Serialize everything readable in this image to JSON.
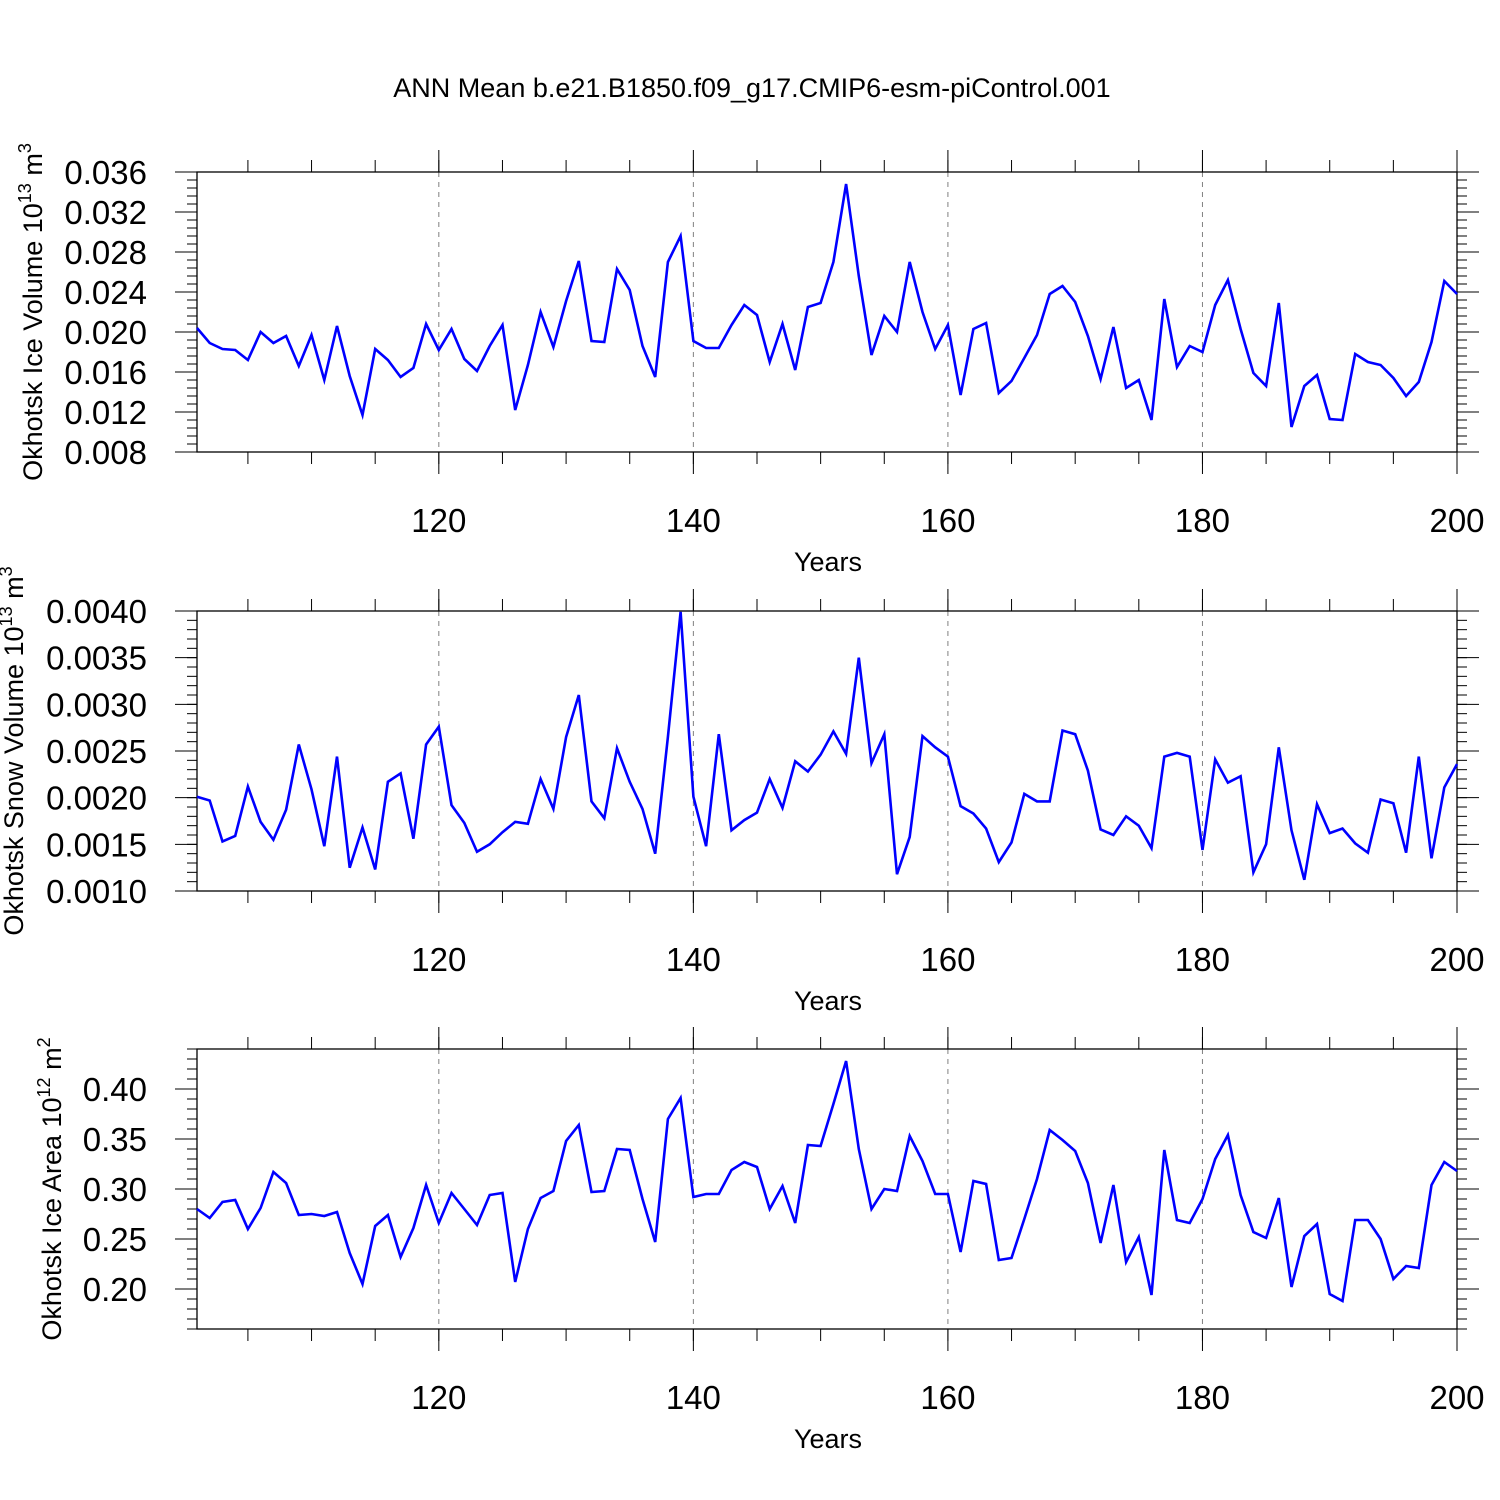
{
  "title": "ANN Mean b.e21.B1850.f09_g17.CMIP6-esm-piControl.001",
  "colors": {
    "line": "#0000ff",
    "grid": "#808080",
    "axis": "#000000"
  },
  "chart_data": [
    {
      "type": "line",
      "ylabel": "Okhotsk Ice Volume 10",
      "ylabel_exp": "13",
      "ylabel_unit": " m",
      "ylabel_unit_exp": "3",
      "xlabel": "Years",
      "xlim": [
        101,
        200
      ],
      "ylim": [
        0.008,
        0.036
      ],
      "yticks": [
        "0.008",
        "0.012",
        "0.016",
        "0.020",
        "0.024",
        "0.028",
        "0.032",
        "0.036"
      ],
      "xticks": [
        "120",
        "140",
        "160",
        "180",
        "200"
      ],
      "grid": "vertical dashed at 120, 140, 160, 180",
      "x_start": 101,
      "values": [
        0.0204,
        0.0189,
        0.0183,
        0.0182,
        0.0172,
        0.02,
        0.0189,
        0.0196,
        0.0166,
        0.0197,
        0.0152,
        0.0206,
        0.0156,
        0.0117,
        0.0183,
        0.0172,
        0.0155,
        0.0164,
        0.0208,
        0.0182,
        0.0203,
        0.0173,
        0.0161,
        0.0186,
        0.0207,
        0.0122,
        0.0167,
        0.022,
        0.0185,
        0.0231,
        0.0271,
        0.0191,
        0.019,
        0.0263,
        0.0242,
        0.0186,
        0.0155,
        0.027,
        0.0296,
        0.0191,
        0.0184,
        0.0184,
        0.0207,
        0.0227,
        0.0217,
        0.017,
        0.0208,
        0.0162,
        0.0225,
        0.0229,
        0.027,
        0.0348,
        0.0256,
        0.0177,
        0.0216,
        0.02,
        0.027,
        0.022,
        0.0183,
        0.0207,
        0.0137,
        0.0203,
        0.0209,
        0.0139,
        0.0151,
        0.0174,
        0.0197,
        0.0238,
        0.0246,
        0.023,
        0.0196,
        0.0153,
        0.0205,
        0.0144,
        0.0152,
        0.0112,
        0.0233,
        0.0165,
        0.0186,
        0.018,
        0.0227,
        0.0252,
        0.0203,
        0.0159,
        0.0146,
        0.0229,
        0.0105,
        0.0146,
        0.0157,
        0.0113,
        0.0112,
        0.0178,
        0.017,
        0.0167,
        0.0154,
        0.0136,
        0.015,
        0.019,
        0.0251,
        0.0238
      ]
    },
    {
      "type": "line",
      "ylabel": "Okhotsk Snow Volume 10",
      "ylabel_exp": "13",
      "ylabel_unit": " m",
      "ylabel_unit_exp": "3",
      "xlabel": "Years",
      "xlim": [
        101,
        200
      ],
      "ylim": [
        0.001,
        0.004
      ],
      "yticks": [
        "0.0010",
        "0.0015",
        "0.0020",
        "0.0025",
        "0.0030",
        "0.0035",
        "0.0040"
      ],
      "xticks": [
        "120",
        "140",
        "160",
        "180",
        "200"
      ],
      "grid": "vertical dashed at 120, 140, 160, 180",
      "x_start": 101,
      "values": [
        0.00201,
        0.00197,
        0.00153,
        0.00159,
        0.00212,
        0.00174,
        0.00155,
        0.00187,
        0.00257,
        0.00209,
        0.00148,
        0.00244,
        0.00125,
        0.00168,
        0.00123,
        0.00217,
        0.00226,
        0.00156,
        0.00257,
        0.00276,
        0.00192,
        0.00173,
        0.00142,
        0.0015,
        0.00163,
        0.00174,
        0.00172,
        0.0022,
        0.00188,
        0.00265,
        0.0031,
        0.00196,
        0.00178,
        0.00253,
        0.00217,
        0.00188,
        0.0014,
        0.00265,
        0.00399,
        0.00201,
        0.00148,
        0.00268,
        0.00165,
        0.00176,
        0.00184,
        0.0022,
        0.00189,
        0.00239,
        0.00228,
        0.00246,
        0.00271,
        0.00247,
        0.0035,
        0.00237,
        0.00268,
        0.00118,
        0.00158,
        0.00266,
        0.00254,
        0.00244,
        0.00191,
        0.00183,
        0.00167,
        0.00131,
        0.00152,
        0.00204,
        0.00196,
        0.00196,
        0.00272,
        0.00268,
        0.00229,
        0.00166,
        0.0016,
        0.0018,
        0.0017,
        0.00146,
        0.00244,
        0.00248,
        0.00244,
        0.00144,
        0.00241,
        0.00216,
        0.00223,
        0.0012,
        0.0015,
        0.00254,
        0.00165,
        0.00112,
        0.00193,
        0.00162,
        0.00167,
        0.00151,
        0.00141,
        0.00198,
        0.00194,
        0.00141,
        0.00244,
        0.00135,
        0.00211,
        0.00236
      ]
    },
    {
      "type": "line",
      "ylabel": "Okhotsk Ice Area 10",
      "ylabel_exp": "12",
      "ylabel_unit": " m",
      "ylabel_unit_exp": "2",
      "xlabel": "Years",
      "xlim": [
        101,
        200
      ],
      "ylim": [
        0.16,
        0.44
      ],
      "yticks": [
        "0.20",
        "0.25",
        "0.30",
        "0.35",
        "0.40"
      ],
      "xticks": [
        "120",
        "140",
        "160",
        "180",
        "200"
      ],
      "grid": "vertical dashed at 120, 140, 160, 180",
      "x_start": 101,
      "values": [
        0.28,
        0.271,
        0.287,
        0.289,
        0.26,
        0.281,
        0.317,
        0.306,
        0.274,
        0.275,
        0.273,
        0.277,
        0.236,
        0.205,
        0.263,
        0.274,
        0.232,
        0.261,
        0.304,
        0.266,
        0.296,
        0.28,
        0.264,
        0.294,
        0.296,
        0.207,
        0.26,
        0.291,
        0.298,
        0.348,
        0.364,
        0.297,
        0.298,
        0.34,
        0.339,
        0.29,
        0.247,
        0.37,
        0.391,
        0.292,
        0.295,
        0.295,
        0.319,
        0.327,
        0.322,
        0.28,
        0.303,
        0.266,
        0.344,
        0.343,
        0.385,
        0.428,
        0.34,
        0.28,
        0.3,
        0.298,
        0.353,
        0.328,
        0.295,
        0.295,
        0.237,
        0.308,
        0.305,
        0.229,
        0.231,
        0.27,
        0.31,
        0.359,
        0.349,
        0.338,
        0.306,
        0.246,
        0.304,
        0.227,
        0.252,
        0.194,
        0.339,
        0.269,
        0.266,
        0.29,
        0.33,
        0.354,
        0.294,
        0.257,
        0.251,
        0.291,
        0.202,
        0.253,
        0.265,
        0.195,
        0.188,
        0.269,
        0.269,
        0.25,
        0.21,
        0.223,
        0.221,
        0.304,
        0.327,
        0.318
      ]
    }
  ]
}
